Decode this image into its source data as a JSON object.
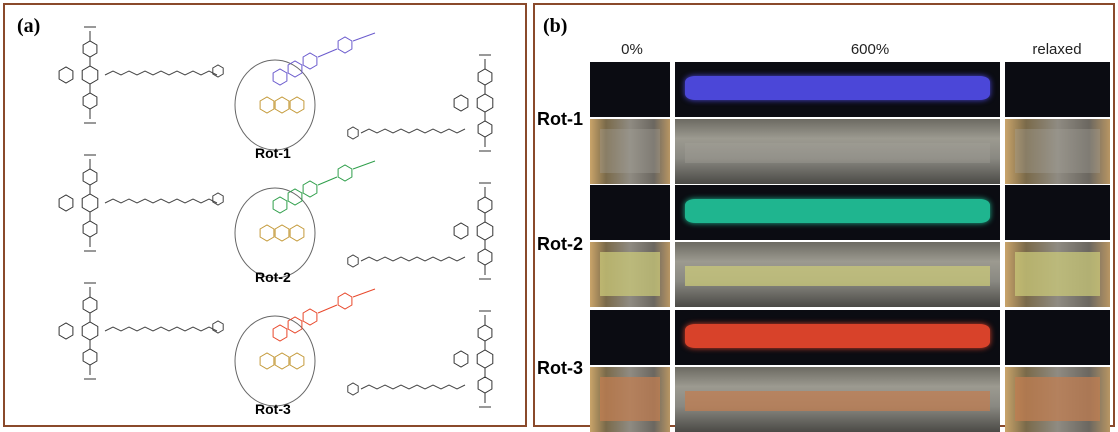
{
  "panel_a": {
    "label": "(a)",
    "molecules": [
      {
        "label": "Rot-1",
        "color": "#6a5acd"
      },
      {
        "label": "Rot-2",
        "color": "#2e9e4a"
      },
      {
        "label": "Rot-3",
        "color": "#e8472a"
      }
    ],
    "core_color": "#c49a3a"
  },
  "panel_b": {
    "label": "(b)",
    "columns": [
      "0%",
      "600%",
      "relaxed"
    ],
    "rows": [
      {
        "label": "Rot-1",
        "glow": "#4b47d8",
        "ambient": "#a7a49a"
      },
      {
        "label": "Rot-2",
        "glow": "#1fb58f",
        "ambient": "#c9c87a"
      },
      {
        "label": "Rot-3",
        "glow": "#d8422a",
        "ambient": "#c07d52"
      }
    ]
  }
}
